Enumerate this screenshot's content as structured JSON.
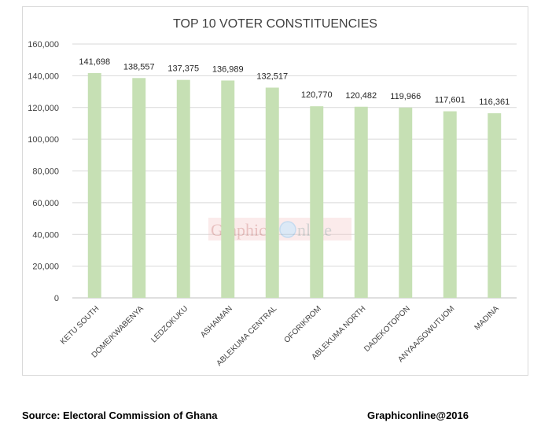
{
  "chart_data": {
    "type": "bar",
    "title": "TOP 10 VOTER CONSTITUENCIES",
    "categories": [
      "KETU SOUTH",
      "DOME/KWABENYA",
      "LEDZOKUKU",
      "ASHAIMAN",
      "ABLEKUMA CENTRAL",
      "OFORIKROM",
      "ABLEKUMA NORTH",
      "DADEKOTOPON",
      "ANYAA/SOWUTUOM",
      "MADINA"
    ],
    "values": [
      141698,
      138557,
      137375,
      136989,
      132517,
      120770,
      120482,
      119966,
      117601,
      116361
    ],
    "data_labels": [
      "141,698",
      "138,557",
      "137,375",
      "136,989",
      "132,517",
      "120,770",
      "120,482",
      "119,966",
      "117,601",
      "116,361"
    ],
    "y_ticks": [
      0,
      20000,
      40000,
      60000,
      80000,
      100000,
      120000,
      140000,
      160000
    ],
    "y_tick_labels": [
      "0",
      "20,000",
      "40,000",
      "60,000",
      "80,000",
      "100,000",
      "120,000",
      "140,000",
      "160,000"
    ],
    "ylim": [
      0,
      160000
    ],
    "grid": true,
    "xlabel": "",
    "ylabel": "",
    "bar_color": "#c6e0b4"
  },
  "watermark": {
    "text_part1": "Graphic",
    "text_part2": "nline"
  },
  "footer": {
    "source": "Source: Electoral Commission of Ghana",
    "credit": "Graphiconline@2016"
  }
}
